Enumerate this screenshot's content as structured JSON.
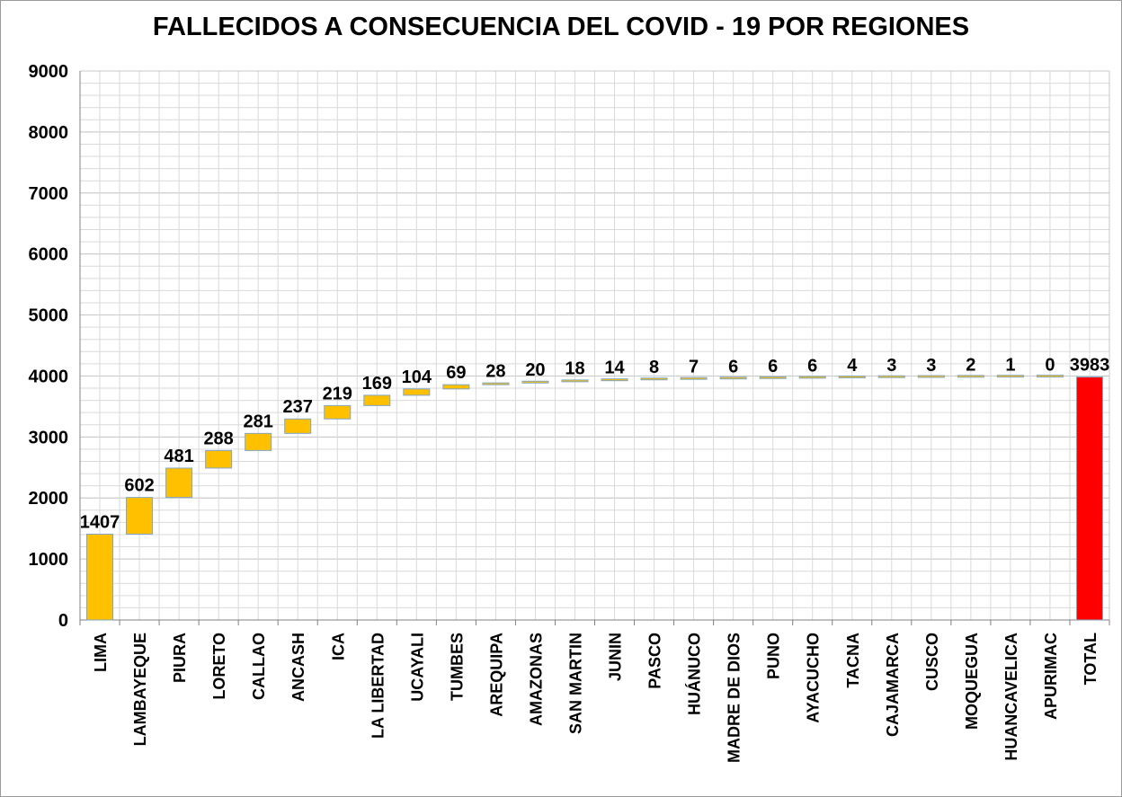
{
  "chart_data": {
    "type": "bar",
    "subtype": "waterfall",
    "title": "FALLECIDOS A CONSECUENCIA DEL COVID - 19 POR REGIONES",
    "xlabel": "",
    "ylabel": "",
    "ylim": [
      0,
      9000
    ],
    "yticks": [
      "0",
      "1000",
      "2000",
      "3000",
      "4000",
      "5000",
      "6000",
      "7000",
      "8000",
      "9000"
    ],
    "grid": true,
    "legend": "none",
    "categories": [
      "LIMA",
      "LAMBAYEQUE",
      "PIURA",
      "LORETO",
      "CALLAO",
      "ANCASH",
      "ICA",
      "LA LIBERTAD",
      "UCAYALI",
      "TUMBES",
      "AREQUIPA",
      "AMAZONAS",
      "SAN MARTIN",
      "JUNIN",
      "PASCO",
      "HUÁNUCO",
      "MADRE DE DIOS",
      "PUNO",
      "AYACUCHO",
      "TACNA",
      "CAJAMARCA",
      "CUSCO",
      "MOQUEGUA",
      "HUANCAVELICA",
      "APURIMAC",
      "TOTAL"
    ],
    "values": [
      1407,
      602,
      481,
      288,
      281,
      237,
      219,
      169,
      104,
      69,
      28,
      20,
      18,
      14,
      8,
      7,
      6,
      6,
      6,
      4,
      3,
      3,
      2,
      1,
      0,
      3983
    ],
    "data_labels": [
      "1407",
      "602",
      "481",
      "288",
      "281",
      "237",
      "219",
      "169",
      "104",
      "69",
      "28",
      "20",
      "18",
      "14",
      "8",
      "7",
      "6",
      "6",
      "6",
      "4",
      "3",
      "3",
      "2",
      "1",
      "0",
      "3983"
    ],
    "colors": {
      "increase": "#FFC000",
      "total": "#FF0000",
      "bar_outline": "#7fa6c9",
      "grid": "#d9d9d9",
      "axis": "#808080"
    }
  }
}
